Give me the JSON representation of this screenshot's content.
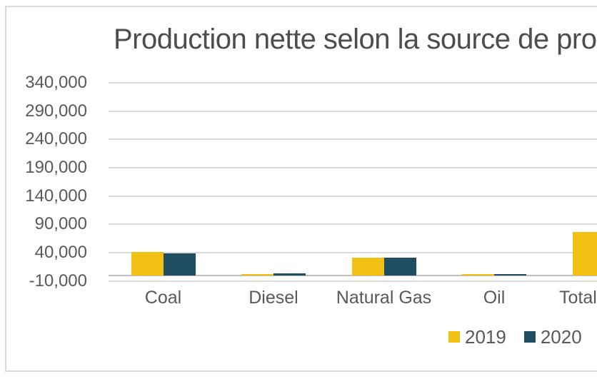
{
  "chart_data": {
    "type": "bar",
    "title": "Production nette selon la source de pro",
    "categories": [
      "Coal",
      "Diesel",
      "Natural Gas",
      "Oil",
      "Total"
    ],
    "series": [
      {
        "name": "2019",
        "color": "#F2C012",
        "values": [
          41500,
          2500,
          30500,
          1500,
          76000
        ]
      },
      {
        "name": "2020",
        "color": "#1F4E63",
        "values": [
          38500,
          3000,
          31300,
          2000,
          null
        ]
      }
    ],
    "y_tick_labels": [
      "340,000",
      "290,000",
      "240,000",
      "190,000",
      "140,000",
      "90,000",
      "40,000",
      "-10,000"
    ],
    "y_tick_values": [
      340000,
      290000,
      240000,
      190000,
      140000,
      90000,
      40000,
      -10000
    ],
    "ylim": [
      -10000,
      340000
    ],
    "grid": true,
    "legend_position": "bottom-right"
  },
  "colors": {
    "series_2019": "#F2C012",
    "series_2020": "#1F4E63",
    "text": "#595959",
    "title_text": "#4D4D4D",
    "gridline": "#D9D9D9",
    "axis_line": "#BFBFBF",
    "frame_border": "#D9D9D9",
    "background": "#FFFFFF"
  }
}
